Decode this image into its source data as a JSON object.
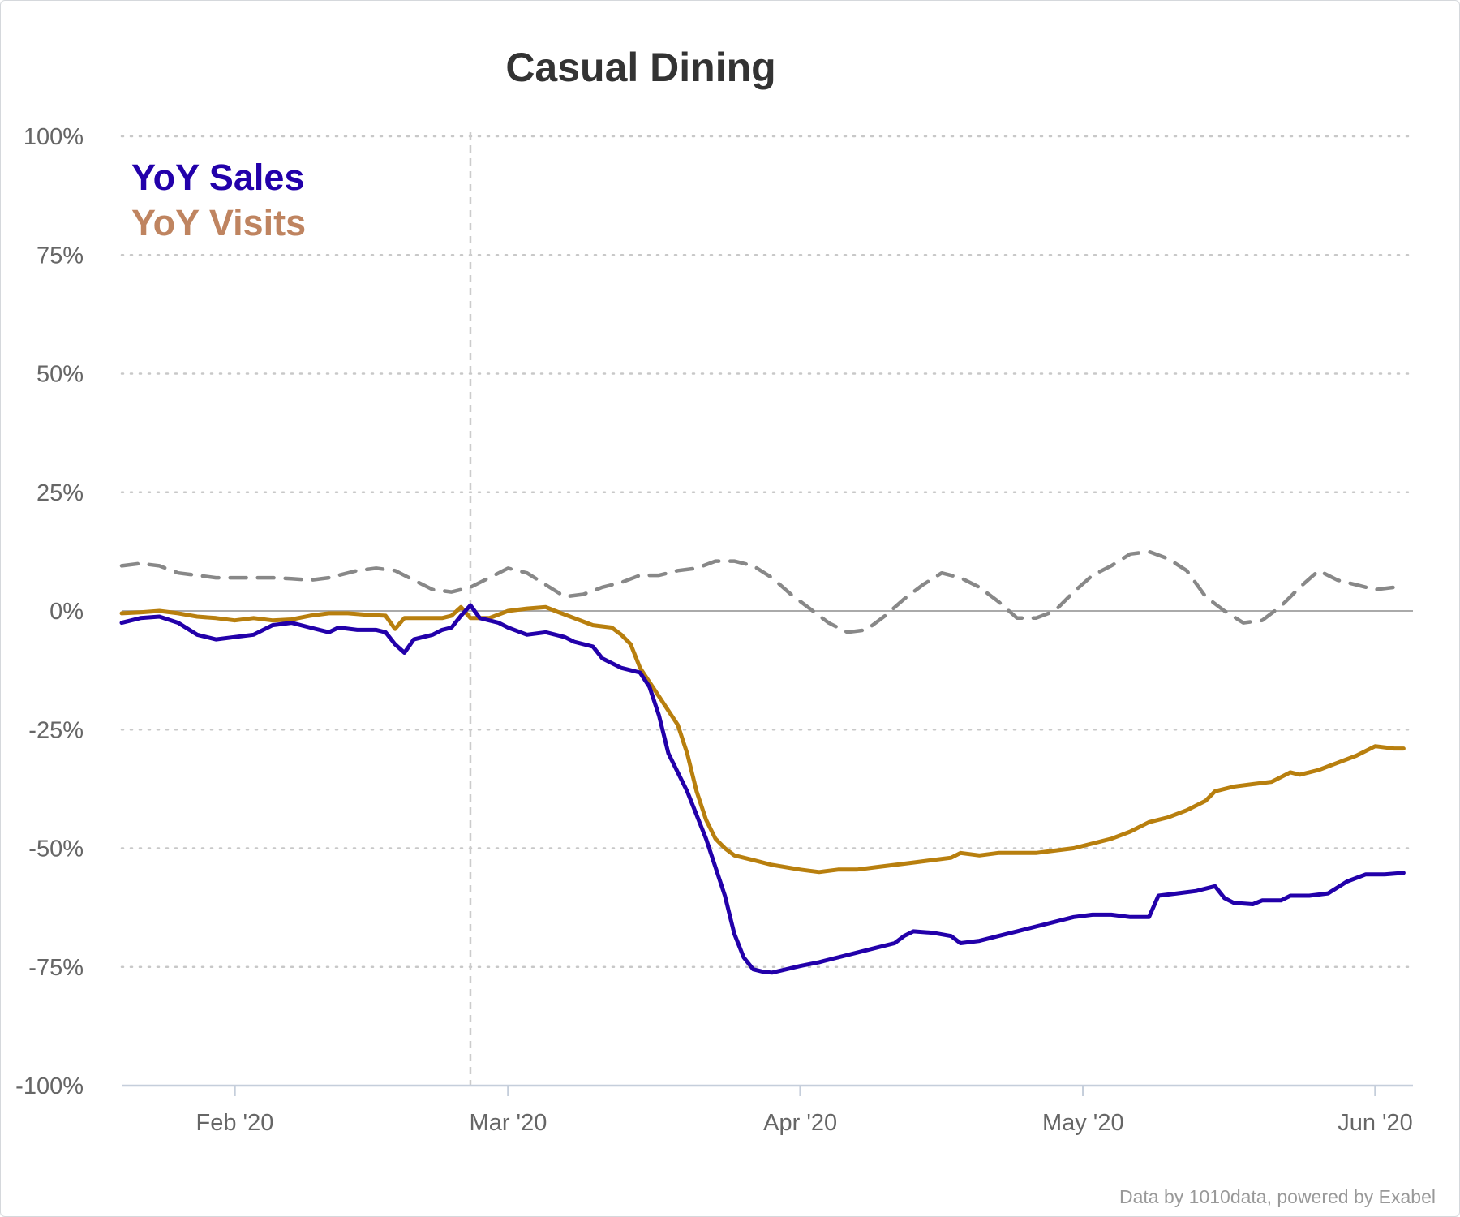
{
  "chart_data": {
    "type": "line",
    "title": "Casual Dining",
    "xlabel": "",
    "ylabel": "",
    "x_range": [
      "2020-01-20",
      "2020-06-05"
    ],
    "ylim": [
      -100,
      100
    ],
    "y_ticks": [
      100,
      75,
      50,
      25,
      0,
      -25,
      -50,
      -75,
      -100
    ],
    "y_tick_labels": [
      "100%",
      "75%",
      "50%",
      "25%",
      "0%",
      "-25%",
      "-50%",
      "-75%",
      "-100%"
    ],
    "x_ticks": [
      "2020-02-01",
      "2020-03-01",
      "2020-04-01",
      "2020-05-01",
      "2020-06-01"
    ],
    "x_tick_labels": [
      "Feb '20",
      "Mar '20",
      "Apr '20",
      "May '20",
      "Jun '20"
    ],
    "reference_line_date": "2020-02-26",
    "grid": "horizontal dotted",
    "legend_position": "top-left",
    "credit": "Data by 1010data, powered by Exabel",
    "series": [
      {
        "name": "YoY Sales",
        "color": "#2200aa",
        "points": [
          [
            "2020-01-20",
            -2.5
          ],
          [
            "2020-01-22",
            -1.5
          ],
          [
            "2020-01-24",
            -1.2
          ],
          [
            "2020-01-26",
            -2.5
          ],
          [
            "2020-01-28",
            -5
          ],
          [
            "2020-01-30",
            -6
          ],
          [
            "2020-02-01",
            -5.5
          ],
          [
            "2020-02-03",
            -5
          ],
          [
            "2020-02-05",
            -3
          ],
          [
            "2020-02-07",
            -2.5
          ],
          [
            "2020-02-09",
            -3.5
          ],
          [
            "2020-02-11",
            -4.5
          ],
          [
            "2020-02-12",
            -3.5
          ],
          [
            "2020-02-14",
            -4
          ],
          [
            "2020-02-16",
            -4
          ],
          [
            "2020-02-17",
            -4.5
          ],
          [
            "2020-02-18",
            -7
          ],
          [
            "2020-02-19",
            -8.8
          ],
          [
            "2020-02-20",
            -6
          ],
          [
            "2020-02-22",
            -5
          ],
          [
            "2020-02-23",
            -4
          ],
          [
            "2020-02-24",
            -3.5
          ],
          [
            "2020-02-25",
            -1
          ],
          [
            "2020-02-26",
            1.2
          ],
          [
            "2020-02-27",
            -1.5
          ],
          [
            "2020-02-29",
            -2.5
          ],
          [
            "2020-03-01",
            -3.5
          ],
          [
            "2020-03-03",
            -5
          ],
          [
            "2020-03-05",
            -4.5
          ],
          [
            "2020-03-07",
            -5.5
          ],
          [
            "2020-03-08",
            -6.5
          ],
          [
            "2020-03-10",
            -7.5
          ],
          [
            "2020-03-11",
            -10
          ],
          [
            "2020-03-13",
            -12
          ],
          [
            "2020-03-15",
            -13
          ],
          [
            "2020-03-16",
            -16
          ],
          [
            "2020-03-17",
            -22
          ],
          [
            "2020-03-18",
            -30
          ],
          [
            "2020-03-20",
            -38
          ],
          [
            "2020-03-22",
            -48
          ],
          [
            "2020-03-24",
            -60
          ],
          [
            "2020-03-25",
            -68
          ],
          [
            "2020-03-26",
            -73
          ],
          [
            "2020-03-27",
            -75.5
          ],
          [
            "2020-03-28",
            -76
          ],
          [
            "2020-03-29",
            -76.2
          ],
          [
            "2020-04-01",
            -74.8
          ],
          [
            "2020-04-03",
            -74
          ],
          [
            "2020-04-05",
            -73
          ],
          [
            "2020-04-07",
            -72
          ],
          [
            "2020-04-09",
            -71
          ],
          [
            "2020-04-11",
            -70
          ],
          [
            "2020-04-12",
            -68.5
          ],
          [
            "2020-04-13",
            -67.5
          ],
          [
            "2020-04-15",
            -67.8
          ],
          [
            "2020-04-17",
            -68.5
          ],
          [
            "2020-04-18",
            -70
          ],
          [
            "2020-04-20",
            -69.5
          ],
          [
            "2020-04-22",
            -68.5
          ],
          [
            "2020-04-24",
            -67.5
          ],
          [
            "2020-04-26",
            -66.5
          ],
          [
            "2020-04-28",
            -65.5
          ],
          [
            "2020-04-30",
            -64.5
          ],
          [
            "2020-05-02",
            -64
          ],
          [
            "2020-05-04",
            -64
          ],
          [
            "2020-05-06",
            -64.5
          ],
          [
            "2020-05-08",
            -64.5
          ],
          [
            "2020-05-09",
            -60
          ],
          [
            "2020-05-11",
            -59.5
          ],
          [
            "2020-05-13",
            -59
          ],
          [
            "2020-05-15",
            -58
          ],
          [
            "2020-05-16",
            -60.5
          ],
          [
            "2020-05-17",
            -61.5
          ],
          [
            "2020-05-19",
            -61.8
          ],
          [
            "2020-05-20",
            -61
          ],
          [
            "2020-05-22",
            -61
          ],
          [
            "2020-05-23",
            -60
          ],
          [
            "2020-05-25",
            -60
          ],
          [
            "2020-05-27",
            -59.5
          ],
          [
            "2020-05-29",
            -57
          ],
          [
            "2020-05-31",
            -55.5
          ],
          [
            "2020-06-02",
            -55.5
          ],
          [
            "2020-06-04",
            -55.2
          ]
        ]
      },
      {
        "name": "YoY Visits",
        "color": "#b87f0e",
        "points": [
          [
            "2020-01-20",
            -0.5
          ],
          [
            "2020-01-22",
            -0.3
          ],
          [
            "2020-01-24",
            0
          ],
          [
            "2020-01-26",
            -0.5
          ],
          [
            "2020-01-28",
            -1.2
          ],
          [
            "2020-01-30",
            -1.5
          ],
          [
            "2020-02-01",
            -2
          ],
          [
            "2020-02-03",
            -1.5
          ],
          [
            "2020-02-05",
            -2
          ],
          [
            "2020-02-07",
            -1.8
          ],
          [
            "2020-02-09",
            -1
          ],
          [
            "2020-02-11",
            -0.5
          ],
          [
            "2020-02-13",
            -0.5
          ],
          [
            "2020-02-15",
            -0.8
          ],
          [
            "2020-02-17",
            -1
          ],
          [
            "2020-02-18",
            -3.8
          ],
          [
            "2020-02-19",
            -1.5
          ],
          [
            "2020-02-21",
            -1.5
          ],
          [
            "2020-02-23",
            -1.5
          ],
          [
            "2020-02-24",
            -1
          ],
          [
            "2020-02-25",
            0.8
          ],
          [
            "2020-02-26",
            -1.5
          ],
          [
            "2020-02-28",
            -1.5
          ],
          [
            "2020-03-01",
            0
          ],
          [
            "2020-03-03",
            0.5
          ],
          [
            "2020-03-05",
            0.8
          ],
          [
            "2020-03-06",
            0
          ],
          [
            "2020-03-08",
            -1.5
          ],
          [
            "2020-03-10",
            -3
          ],
          [
            "2020-03-12",
            -3.5
          ],
          [
            "2020-03-13",
            -5
          ],
          [
            "2020-03-14",
            -7
          ],
          [
            "2020-03-15",
            -12
          ],
          [
            "2020-03-17",
            -18
          ],
          [
            "2020-03-19",
            -24
          ],
          [
            "2020-03-20",
            -30
          ],
          [
            "2020-03-21",
            -38
          ],
          [
            "2020-03-22",
            -44
          ],
          [
            "2020-03-23",
            -48
          ],
          [
            "2020-03-24",
            -50
          ],
          [
            "2020-03-25",
            -51.5
          ],
          [
            "2020-03-27",
            -52.5
          ],
          [
            "2020-03-29",
            -53.5
          ],
          [
            "2020-04-01",
            -54.5
          ],
          [
            "2020-04-03",
            -55
          ],
          [
            "2020-04-05",
            -54.5
          ],
          [
            "2020-04-07",
            -54.5
          ],
          [
            "2020-04-09",
            -54
          ],
          [
            "2020-04-11",
            -53.5
          ],
          [
            "2020-04-13",
            -53
          ],
          [
            "2020-04-15",
            -52.5
          ],
          [
            "2020-04-17",
            -52
          ],
          [
            "2020-04-18",
            -51
          ],
          [
            "2020-04-20",
            -51.5
          ],
          [
            "2020-04-22",
            -51
          ],
          [
            "2020-04-24",
            -51
          ],
          [
            "2020-04-26",
            -51
          ],
          [
            "2020-04-28",
            -50.5
          ],
          [
            "2020-04-30",
            -50
          ],
          [
            "2020-05-02",
            -49
          ],
          [
            "2020-05-04",
            -48
          ],
          [
            "2020-05-06",
            -46.5
          ],
          [
            "2020-05-08",
            -44.5
          ],
          [
            "2020-05-10",
            -43.5
          ],
          [
            "2020-05-12",
            -42
          ],
          [
            "2020-05-14",
            -40
          ],
          [
            "2020-05-15",
            -38
          ],
          [
            "2020-05-17",
            -37
          ],
          [
            "2020-05-19",
            -36.5
          ],
          [
            "2020-05-21",
            -36
          ],
          [
            "2020-05-22",
            -35
          ],
          [
            "2020-05-23",
            -34
          ],
          [
            "2020-05-24",
            -34.5
          ],
          [
            "2020-05-26",
            -33.5
          ],
          [
            "2020-05-28",
            -32
          ],
          [
            "2020-05-30",
            -30.5
          ],
          [
            "2020-06-01",
            -28.5
          ],
          [
            "2020-06-03",
            -29
          ],
          [
            "2020-06-04",
            -29
          ]
        ]
      },
      {
        "name": "",
        "color": "#888888",
        "points": [
          [
            "2020-01-20",
            9.5
          ],
          [
            "2020-01-22",
            10
          ],
          [
            "2020-01-24",
            9.5
          ],
          [
            "2020-01-26",
            8
          ],
          [
            "2020-01-28",
            7.5
          ],
          [
            "2020-01-30",
            7
          ],
          [
            "2020-02-01",
            7
          ],
          [
            "2020-02-03",
            7
          ],
          [
            "2020-02-05",
            7
          ],
          [
            "2020-02-07",
            6.8
          ],
          [
            "2020-02-09",
            6.5
          ],
          [
            "2020-02-11",
            7
          ],
          [
            "2020-02-14",
            8.5
          ],
          [
            "2020-02-16",
            9
          ],
          [
            "2020-02-18",
            8.5
          ],
          [
            "2020-02-20",
            6.5
          ],
          [
            "2020-02-22",
            4.5
          ],
          [
            "2020-02-24",
            4
          ],
          [
            "2020-02-26",
            5
          ],
          [
            "2020-02-28",
            7
          ],
          [
            "2020-03-01",
            9
          ],
          [
            "2020-03-03",
            8
          ],
          [
            "2020-03-05",
            5.5
          ],
          [
            "2020-03-07",
            3
          ],
          [
            "2020-03-09",
            3.5
          ],
          [
            "2020-03-11",
            5
          ],
          [
            "2020-03-13",
            6
          ],
          [
            "2020-03-15",
            7.5
          ],
          [
            "2020-03-17",
            7.5
          ],
          [
            "2020-03-19",
            8.5
          ],
          [
            "2020-03-21",
            9
          ],
          [
            "2020-03-23",
            10.5
          ],
          [
            "2020-03-25",
            10.5
          ],
          [
            "2020-03-27",
            9.5
          ],
          [
            "2020-03-29",
            7
          ],
          [
            "2020-03-31",
            3.5
          ],
          [
            "2020-04-02",
            0.5
          ],
          [
            "2020-04-04",
            -2.5
          ],
          [
            "2020-04-06",
            -4.5
          ],
          [
            "2020-04-08",
            -4
          ],
          [
            "2020-04-10",
            -1
          ],
          [
            "2020-04-12",
            2.5
          ],
          [
            "2020-04-14",
            5.5
          ],
          [
            "2020-04-16",
            8
          ],
          [
            "2020-04-18",
            7
          ],
          [
            "2020-04-20",
            5
          ],
          [
            "2020-04-22",
            2
          ],
          [
            "2020-04-24",
            -1.5
          ],
          [
            "2020-04-26",
            -1.5
          ],
          [
            "2020-04-28",
            0
          ],
          [
            "2020-04-30",
            4
          ],
          [
            "2020-05-02",
            7.5
          ],
          [
            "2020-05-04",
            9.5
          ],
          [
            "2020-05-06",
            12
          ],
          [
            "2020-05-08",
            12.5
          ],
          [
            "2020-05-10",
            11
          ],
          [
            "2020-05-12",
            8.5
          ],
          [
            "2020-05-14",
            3
          ],
          [
            "2020-05-16",
            0
          ],
          [
            "2020-05-18",
            -2.5
          ],
          [
            "2020-05-20",
            -2
          ],
          [
            "2020-05-22",
            1
          ],
          [
            "2020-05-24",
            5
          ],
          [
            "2020-05-26",
            8.5
          ],
          [
            "2020-05-28",
            6.5
          ],
          [
            "2020-05-30",
            5.5
          ],
          [
            "2020-06-01",
            4.5
          ],
          [
            "2020-06-03",
            5
          ],
          [
            "2020-06-04",
            5
          ]
        ]
      }
    ]
  }
}
